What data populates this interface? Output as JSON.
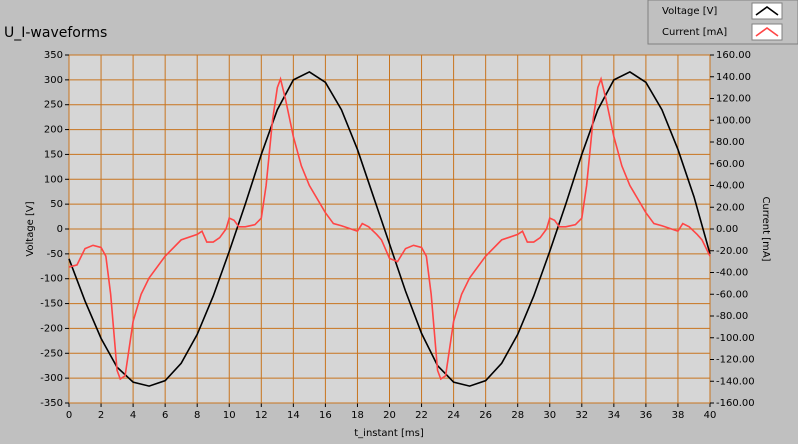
{
  "chart_data": {
    "type": "line",
    "title": "U_I-waveforms",
    "x_label": "t_instant [ms]",
    "y_label": "Voltage [V]",
    "y2_label": "Current [mA]",
    "xlim": [
      0,
      40
    ],
    "xticks": [
      0,
      2,
      4,
      6,
      8,
      10,
      12,
      14,
      16,
      18,
      20,
      22,
      24,
      26,
      28,
      30,
      32,
      34,
      36,
      38,
      40
    ],
    "ylim": [
      -350,
      350
    ],
    "yticks": [
      -350,
      -300,
      -250,
      -200,
      -150,
      -100,
      -50,
      0,
      50,
      100,
      150,
      200,
      250,
      300,
      350
    ],
    "y2lim": [
      -160,
      160
    ],
    "y2ticks": [
      {
        "value": -160,
        "label": "-160.00"
      },
      {
        "value": -140,
        "label": "-140.00"
      },
      {
        "value": -120,
        "label": "-120.00"
      },
      {
        "value": -100,
        "label": "-100.00"
      },
      {
        "value": -80,
        "label": "-80.00"
      },
      {
        "value": -60,
        "label": "-60.00"
      },
      {
        "value": -40,
        "label": "-40.00"
      },
      {
        "value": -20,
        "label": "-20.00"
      },
      {
        "value": 0,
        "label": "0.00"
      },
      {
        "value": 20,
        "label": "20.00"
      },
      {
        "value": 40,
        "label": "40.00"
      },
      {
        "value": 60,
        "label": "60.00"
      },
      {
        "value": 80,
        "label": "80.00"
      },
      {
        "value": 100,
        "label": "100.00"
      },
      {
        "value": 120,
        "label": "120.00"
      },
      {
        "value": 140,
        "label": "140.00"
      },
      {
        "value": 160,
        "label": "160.00"
      }
    ],
    "grid": true,
    "grid_color": "#c8741e",
    "legend": "top-right",
    "series": [
      {
        "name": "Voltage [V]",
        "color": "#000000",
        "x": [
          0,
          1,
          2,
          3,
          4,
          5,
          6,
          7,
          8,
          9,
          10,
          11,
          12,
          13,
          14,
          15,
          16,
          17,
          18,
          19,
          20,
          21,
          22,
          23,
          24,
          25,
          26,
          27,
          28,
          29,
          30,
          31,
          32,
          33,
          34,
          35,
          36,
          37,
          38,
          39,
          40
        ],
        "values": [
          -60,
          -145,
          -220,
          -278,
          -308,
          -316,
          -305,
          -270,
          -212,
          -135,
          -45,
          50,
          150,
          240,
          300,
          316,
          295,
          240,
          160,
          65,
          -30,
          -125,
          -210,
          -275,
          -308,
          -316,
          -305,
          -270,
          -212,
          -135,
          -45,
          50,
          150,
          240,
          300,
          316,
          295,
          240,
          160,
          65,
          -50
        ]
      },
      {
        "name": "Current [mA]",
        "color": "#ff4545",
        "axis": "y2",
        "x": [
          0,
          0.5,
          1,
          1.5,
          2,
          2.3,
          2.6,
          3,
          3.2,
          3.5,
          4,
          4.5,
          5,
          6,
          7,
          8,
          8.3,
          8.6,
          9,
          9.4,
          9.8,
          10,
          10.3,
          10.6,
          11,
          11.6,
          12,
          12.3,
          12.7,
          13,
          13.2,
          13.5,
          14,
          14.5,
          15,
          16,
          16.5,
          17,
          18,
          18.3,
          18.7,
          19.2,
          19.5,
          20,
          20.5,
          21,
          21.5,
          22,
          22.3,
          22.6,
          23,
          23.2,
          23.5,
          24,
          24.5,
          25,
          26,
          27,
          28,
          28.3,
          28.6,
          29,
          29.4,
          29.8,
          30,
          30.3,
          30.6,
          31,
          31.6,
          32,
          32.3,
          32.7,
          33,
          33.2,
          33.5,
          34,
          34.5,
          35,
          36,
          36.5,
          37,
          38,
          38.3,
          38.7,
          39.2,
          39.5,
          40
        ],
        "values": [
          -35,
          -33,
          -18,
          -15,
          -17,
          -25,
          -60,
          -130,
          -138,
          -135,
          -85,
          -60,
          -45,
          -25,
          -10,
          -5,
          -2,
          -12,
          -12,
          -8,
          0,
          10,
          8,
          2,
          2,
          4,
          10,
          40,
          100,
          130,
          138,
          120,
          85,
          58,
          40,
          15,
          5,
          3,
          -2,
          5,
          2,
          -5,
          -10,
          -27,
          -30,
          -18,
          -15,
          -17,
          -25,
          -60,
          -130,
          -138,
          -135,
          -85,
          -60,
          -45,
          -25,
          -10,
          -5,
          -2,
          -12,
          -12,
          -8,
          0,
          10,
          8,
          2,
          2,
          4,
          10,
          40,
          100,
          130,
          138,
          120,
          85,
          58,
          40,
          15,
          5,
          3,
          -2,
          5,
          2,
          -5,
          -10,
          -25
        ]
      }
    ]
  }
}
